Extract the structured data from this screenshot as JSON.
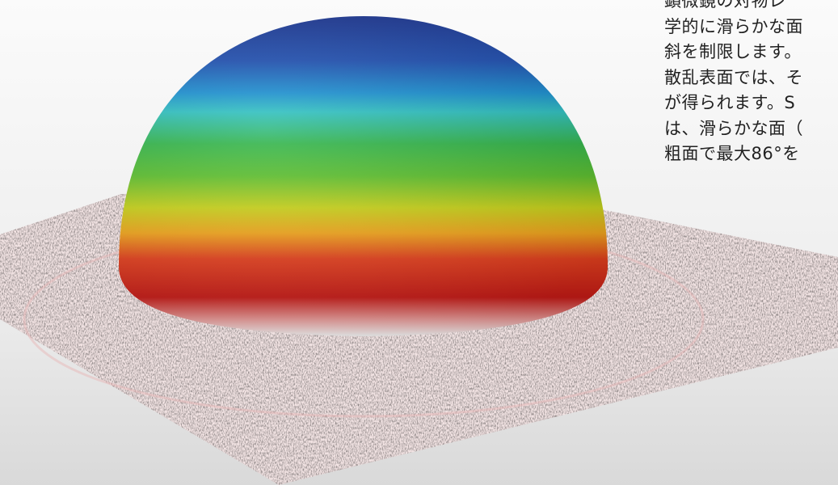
{
  "text": {
    "lines": [
      "顕微鏡の対物レ",
      "学的に滑らかな面",
      "斜を制限します。",
      "散乱表面では、そ",
      "が得られます。S",
      "は、滑らかな面（",
      "粗面で最大86°を"
    ]
  }
}
